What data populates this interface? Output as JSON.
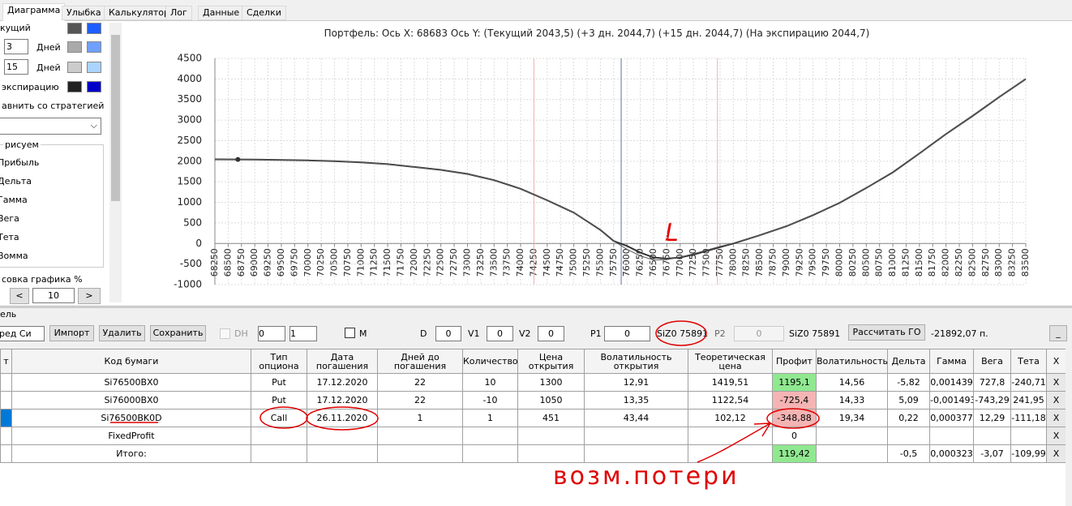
{
  "tabs": [
    "Диаграмма",
    "Улыбка",
    "Калькулятор",
    "Лог",
    "Данные",
    "Сделки"
  ],
  "left_panel": {
    "current_label": "кущий",
    "days1": "3",
    "days_label1": "Дней",
    "days2": "15",
    "days_label2": "Дней",
    "expiration_label": "экспирацию",
    "compare_label": "авнить со стратегией",
    "draw_group": "рисуем",
    "draw_options": [
      "Прибыль",
      "Дельта",
      "Гамма",
      "Вега",
      "Тета",
      "Вомма"
    ],
    "scale_label": "совка графика %",
    "scale_prev": "<",
    "scale_value": "10",
    "scale_next": ">"
  },
  "chart_data": {
    "type": "line",
    "title": "Портфель: Ось X: 68683 Ось Y:  (Текущий 2043,5)  (+3 дн. 2044,7)  (+15 дн. 2044,7)  (На экспирацию 2044,7)",
    "x": [
      68250,
      69000,
      70000,
      70500,
      71000,
      71500,
      72000,
      72500,
      73000,
      73500,
      74000,
      74500,
      75000,
      75500,
      75750,
      76000,
      76250,
      76500,
      76750,
      77000,
      77250,
      77500,
      77750,
      78000,
      78500,
      79000,
      79500,
      80000,
      80500,
      81000,
      81500,
      82000,
      82500,
      83000,
      83500
    ],
    "series": [
      {
        "color": "#333333",
        "values": [
          2045,
          2040,
          2020,
          2000,
          1970,
          1930,
          1860,
          1790,
          1690,
          1540,
          1330,
          1050,
          750,
          330,
          60,
          -60,
          -220,
          -340,
          -370,
          -340,
          -270,
          -180,
          -90,
          0,
          200,
          420,
          690,
          990,
          1350,
          1730,
          2190,
          2660,
          3100,
          3560,
          4000
        ]
      },
      {
        "color": "#5a5a5a",
        "values": [
          2045,
          2040,
          2020,
          2000,
          1970,
          1930,
          1860,
          1790,
          1690,
          1540,
          1330,
          1050,
          750,
          330,
          60,
          -140,
          -300,
          -400,
          -390,
          -330,
          -250,
          -160,
          -70,
          10,
          200,
          420,
          690,
          990,
          1350,
          1730,
          2190,
          2660,
          3100,
          3560,
          4000
        ]
      }
    ],
    "marker": {
      "x": 68683,
      "y": 2043.5,
      "color": "#333333"
    },
    "vlines": [
      {
        "x": 74250,
        "color": "#f4b0b0"
      },
      {
        "x": 75891,
        "color": "#5a6fa8"
      },
      {
        "x": 77700,
        "color": "#f4b0b0"
      }
    ],
    "xlim": [
      68250,
      83500
    ],
    "ylim": [
      -1000,
      4500
    ],
    "xticks": [
      68250,
      68500,
      68750,
      69000,
      69250,
      69500,
      69750,
      70000,
      70250,
      70500,
      70750,
      71000,
      71250,
      71500,
      71750,
      72000,
      72250,
      72500,
      72750,
      73000,
      73250,
      73500,
      73750,
      74000,
      74250,
      74500,
      74750,
      75000,
      75250,
      75500,
      75750,
      76000,
      76250,
      76500,
      76750,
      77000,
      77250,
      77500,
      77750,
      78000,
      78250,
      78500,
      78750,
      79000,
      79250,
      79500,
      79750,
      80000,
      80250,
      80500,
      80750,
      81000,
      81250,
      81500,
      81750,
      82000,
      82250,
      82500,
      82750,
      83000,
      83250,
      83500
    ],
    "yticks": [
      -1000,
      -500,
      0,
      500,
      1000,
      1500,
      2000,
      2500,
      3000,
      3500,
      4000,
      4500
    ],
    "grid": true,
    "annotation": "L"
  },
  "portfolio": {
    "group_label": "ель",
    "strategy": "ред Си",
    "import": "Импорт",
    "delete": "Удалить",
    "save": "Сохранить",
    "dh_label": "DH",
    "spin1": "0",
    "spin2": "1",
    "m_label": "M",
    "d_label": "D",
    "d_value": "0",
    "v1_label": "V1",
    "v1_value": "0",
    "v2_label": "V2",
    "v2_value": "0",
    "p1_label": "P1",
    "p1_value": "0",
    "p1_instrument": "SiZ0 75891",
    "p2_label": "P2",
    "p2_value": "0",
    "p2_instrument": "SiZ0 75891",
    "calc_button": "Рассчитать ГО",
    "margin": "-21892,07 п.",
    "minimize": "_"
  },
  "table": {
    "header": [
      "т",
      "Код бумаги",
      "Тип опциона",
      "Дата погашения",
      "Дней до погашения",
      "Количество",
      "Цена открытия",
      "Волатильность открытия",
      "Теоретическая цена",
      "Профит",
      "Волатильность",
      "Дельта",
      "Гамма",
      "Вега",
      "Тета",
      "X"
    ],
    "rows": [
      [
        null,
        "Si76500BX0",
        "Put",
        "17.12.2020",
        "22",
        "10",
        "1300",
        "12,91",
        "1419,51",
        "1195,1",
        "14,56",
        "-5,82",
        "0,001439",
        "727,8",
        "-240,71",
        "X"
      ],
      [
        null,
        "Si76000BX0",
        "Put",
        "17.12.2020",
        "22",
        "-10",
        "1050",
        "13,35",
        "1122,54",
        "-725,4",
        "14,33",
        "5,09",
        "-0,001493",
        "-743,29",
        "241,95",
        "X"
      ],
      [
        null,
        "Si76500BK0D",
        "Call",
        "26.11.2020",
        "1",
        "1",
        "451",
        "43,44",
        "102,12",
        "-348,88",
        "19,34",
        "0,22",
        "0,000377",
        "12,29",
        "-111,18",
        "X"
      ],
      [
        null,
        "FixedProfit",
        null,
        null,
        null,
        null,
        null,
        null,
        null,
        "0",
        null,
        null,
        null,
        null,
        null,
        "X"
      ],
      [
        null,
        "Итого:",
        null,
        null,
        null,
        null,
        null,
        null,
        null,
        "119,42",
        null,
        "-0,5",
        "0,000323",
        "-3,07",
        "-109,99",
        "X"
      ]
    ],
    "profit_colors": [
      "#90e890",
      "#f4b4b4",
      "#f4b4b4",
      null,
      "#90e890"
    ],
    "selected_row": 2
  },
  "annotation": "возм.потери"
}
